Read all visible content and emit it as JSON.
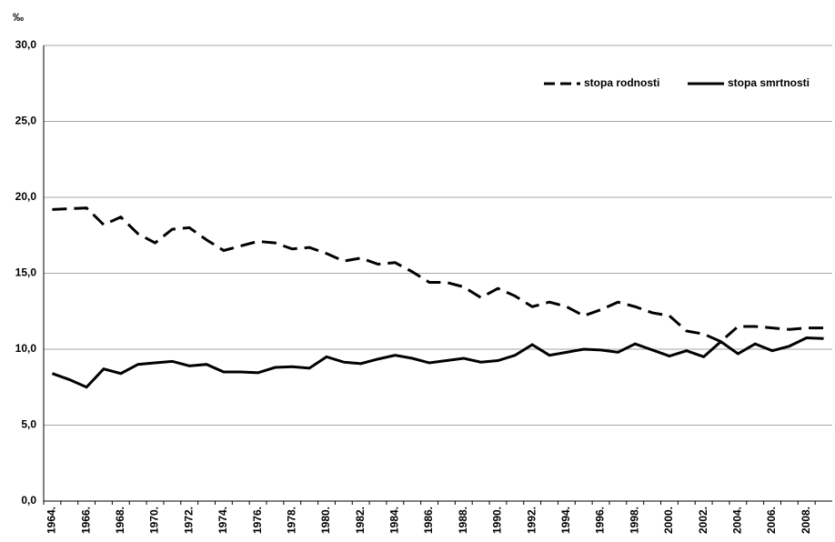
{
  "chart_data": {
    "type": "line",
    "unit": "‰",
    "categories": [
      "1964.",
      null,
      "1966.",
      null,
      "1968.",
      null,
      "1970.",
      null,
      "1972.",
      null,
      "1974.",
      null,
      "1976.",
      null,
      "1978.",
      null,
      "1980.",
      null,
      "1982.",
      null,
      "1984.",
      null,
      "1986.",
      null,
      "1988.",
      null,
      "1990.",
      null,
      "1992.",
      null,
      "1994.",
      null,
      "1996.",
      null,
      "1998.",
      null,
      "2000.",
      null,
      "2002.",
      null,
      "2004.",
      null,
      "2006.",
      null,
      "2008.",
      null
    ],
    "series": [
      {
        "name": "stopa rodnosti",
        "color": "#000000",
        "style": "dashed",
        "values": [
          19.2,
          19.25,
          19.3,
          18.2,
          18.7,
          17.6,
          17.0,
          17.9,
          18.0,
          17.2,
          16.5,
          16.8,
          17.1,
          17.0,
          16.6,
          16.7,
          16.3,
          15.8,
          16.0,
          15.6,
          15.7,
          15.1,
          14.4,
          14.4,
          14.1,
          13.4,
          14.0,
          13.5,
          12.8,
          13.1,
          12.8,
          12.2,
          12.6,
          13.1,
          12.8,
          12.4,
          12.2,
          11.2,
          11.0,
          10.5,
          11.5,
          11.5,
          11.4,
          11.3,
          11.4,
          11.4
        ]
      },
      {
        "name": "stopa smrtnosti",
        "color": "#000000",
        "style": "solid",
        "values": [
          8.4,
          8.0,
          7.5,
          8.7,
          8.4,
          9.0,
          9.1,
          9.2,
          8.9,
          9.0,
          8.5,
          8.5,
          8.45,
          8.8,
          8.85,
          8.75,
          9.5,
          9.15,
          9.05,
          9.35,
          9.6,
          9.4,
          9.1,
          9.25,
          9.4,
          9.15,
          9.25,
          9.6,
          10.3,
          9.6,
          9.8,
          10.0,
          9.95,
          9.8,
          10.35,
          9.95,
          9.55,
          9.9,
          9.5,
          10.5,
          9.7,
          10.35,
          9.9,
          10.2,
          10.75,
          10.7
        ]
      }
    ],
    "ylim": [
      0,
      30
    ],
    "yticks": [
      {
        "value": 0,
        "label": "0,0"
      },
      {
        "value": 5,
        "label": "5,0"
      },
      {
        "value": 10,
        "label": "10,0"
      },
      {
        "value": 15,
        "label": "15,0"
      },
      {
        "value": 20,
        "label": "20,0"
      },
      {
        "value": 25,
        "label": "25,0"
      },
      {
        "value": 30,
        "label": "30,0"
      }
    ],
    "grid": true,
    "legend": "upper right"
  }
}
